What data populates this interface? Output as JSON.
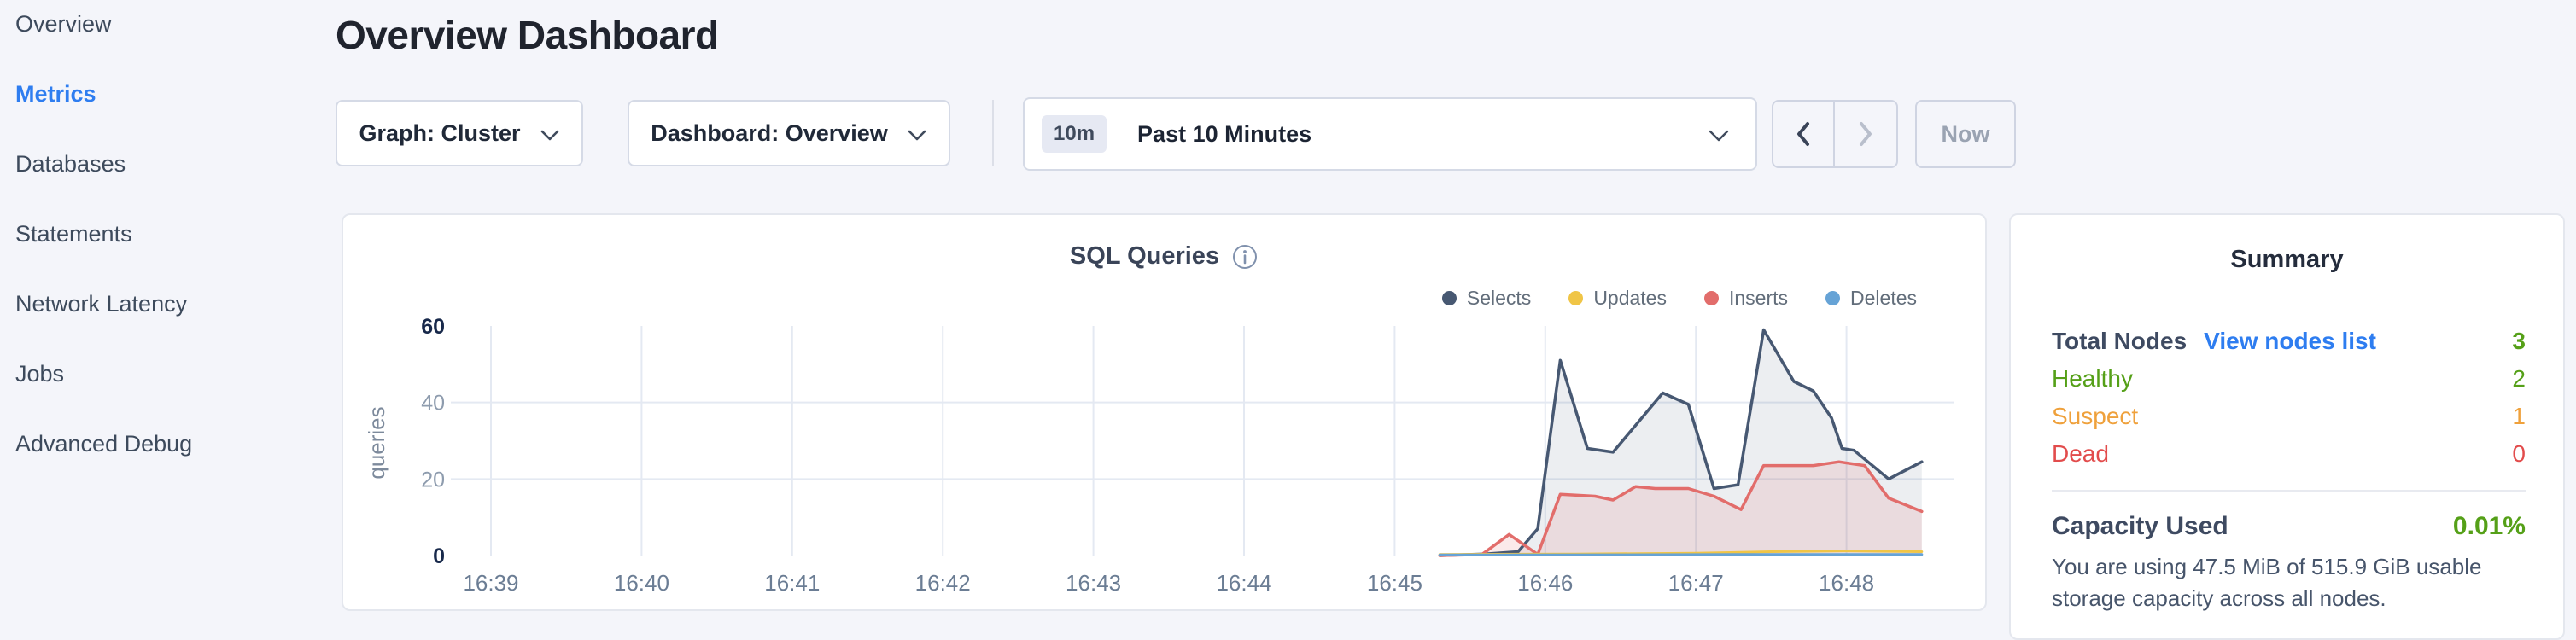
{
  "sidebar": {
    "items": [
      {
        "label": "Overview",
        "active": false
      },
      {
        "label": "Metrics",
        "active": true
      },
      {
        "label": "Databases",
        "active": false
      },
      {
        "label": "Statements",
        "active": false
      },
      {
        "label": "Network Latency",
        "active": false
      },
      {
        "label": "Jobs",
        "active": false
      },
      {
        "label": "Advanced Debug",
        "active": false
      }
    ]
  },
  "header": {
    "title": "Overview Dashboard"
  },
  "controls": {
    "graph_label": "Graph: Cluster",
    "dashboard_label": "Dashboard: Overview",
    "time_badge": "10m",
    "time_label": "Past 10 Minutes",
    "now_label": "Now"
  },
  "chart_data": {
    "type": "area",
    "title": "SQL Queries",
    "ylabel": "queries",
    "ylim": [
      0,
      60
    ],
    "yticks": [
      0,
      20,
      40,
      60
    ],
    "xticks": [
      "16:39",
      "16:40",
      "16:41",
      "16:42",
      "16:43",
      "16:44",
      "16:45",
      "16:46",
      "16:47",
      "16:48"
    ],
    "x_unit": "minutes after 16:39",
    "grid": true,
    "legend_position": "top-right",
    "series": [
      {
        "name": "Selects",
        "color": "#475872",
        "fill": "rgba(71,88,114,0.10)",
        "points": [
          [
            6.3,
            0
          ],
          [
            6.6,
            0.4
          ],
          [
            6.82,
            1
          ],
          [
            6.95,
            7
          ],
          [
            7.1,
            51
          ],
          [
            7.28,
            28
          ],
          [
            7.45,
            27
          ],
          [
            7.78,
            42.5
          ],
          [
            7.95,
            39.5
          ],
          [
            8.12,
            17.5
          ],
          [
            8.28,
            18.5
          ],
          [
            8.45,
            59
          ],
          [
            8.65,
            45.5
          ],
          [
            8.78,
            43
          ],
          [
            8.9,
            36
          ],
          [
            8.97,
            28
          ],
          [
            9.05,
            27.5
          ],
          [
            9.28,
            20
          ],
          [
            9.5,
            24.5
          ]
        ]
      },
      {
        "name": "Updates",
        "color": "#f0c546",
        "fill": null,
        "points": [
          [
            6.3,
            0.3
          ],
          [
            7.2,
            0.4
          ],
          [
            8.0,
            0.6
          ],
          [
            8.5,
            1
          ],
          [
            9.0,
            1.2
          ],
          [
            9.5,
            1
          ]
        ]
      },
      {
        "name": "Inserts",
        "color": "#e26d6b",
        "fill": "rgba(226,109,107,0.14)",
        "points": [
          [
            6.3,
            0
          ],
          [
            6.58,
            0.3
          ],
          [
            6.76,
            5.5
          ],
          [
            6.95,
            0.3
          ],
          [
            7.1,
            16
          ],
          [
            7.33,
            15.5
          ],
          [
            7.45,
            14.5
          ],
          [
            7.6,
            18
          ],
          [
            7.73,
            17.5
          ],
          [
            7.95,
            17.5
          ],
          [
            8.12,
            15.5
          ],
          [
            8.3,
            12
          ],
          [
            8.45,
            23.5
          ],
          [
            8.63,
            23.5
          ],
          [
            8.78,
            23.5
          ],
          [
            8.95,
            24.5
          ],
          [
            9.12,
            23.5
          ],
          [
            9.28,
            15
          ],
          [
            9.5,
            11.5
          ]
        ]
      },
      {
        "name": "Deletes",
        "color": "#66a3d6",
        "fill": null,
        "points": [
          [
            6.3,
            0.15
          ],
          [
            7.5,
            0.2
          ],
          [
            8.5,
            0.3
          ],
          [
            9.5,
            0.3
          ]
        ]
      }
    ]
  },
  "summary": {
    "heading": "Summary",
    "total_nodes": {
      "label": "Total Nodes",
      "link": "View nodes list",
      "value": "3",
      "value_color": "#55a018"
    },
    "statuses": [
      {
        "label": "Healthy",
        "value": "2",
        "color": "#55a018"
      },
      {
        "label": "Suspect",
        "value": "1",
        "color": "#efa13c"
      },
      {
        "label": "Dead",
        "value": "0",
        "color": "#e24c4c"
      }
    ],
    "capacity": {
      "label": "Capacity Used",
      "value": "0.01%",
      "value_color": "#55a018",
      "description": "You are using 47.5 MiB of 515.9 GiB usable storage capacity across all nodes."
    }
  }
}
